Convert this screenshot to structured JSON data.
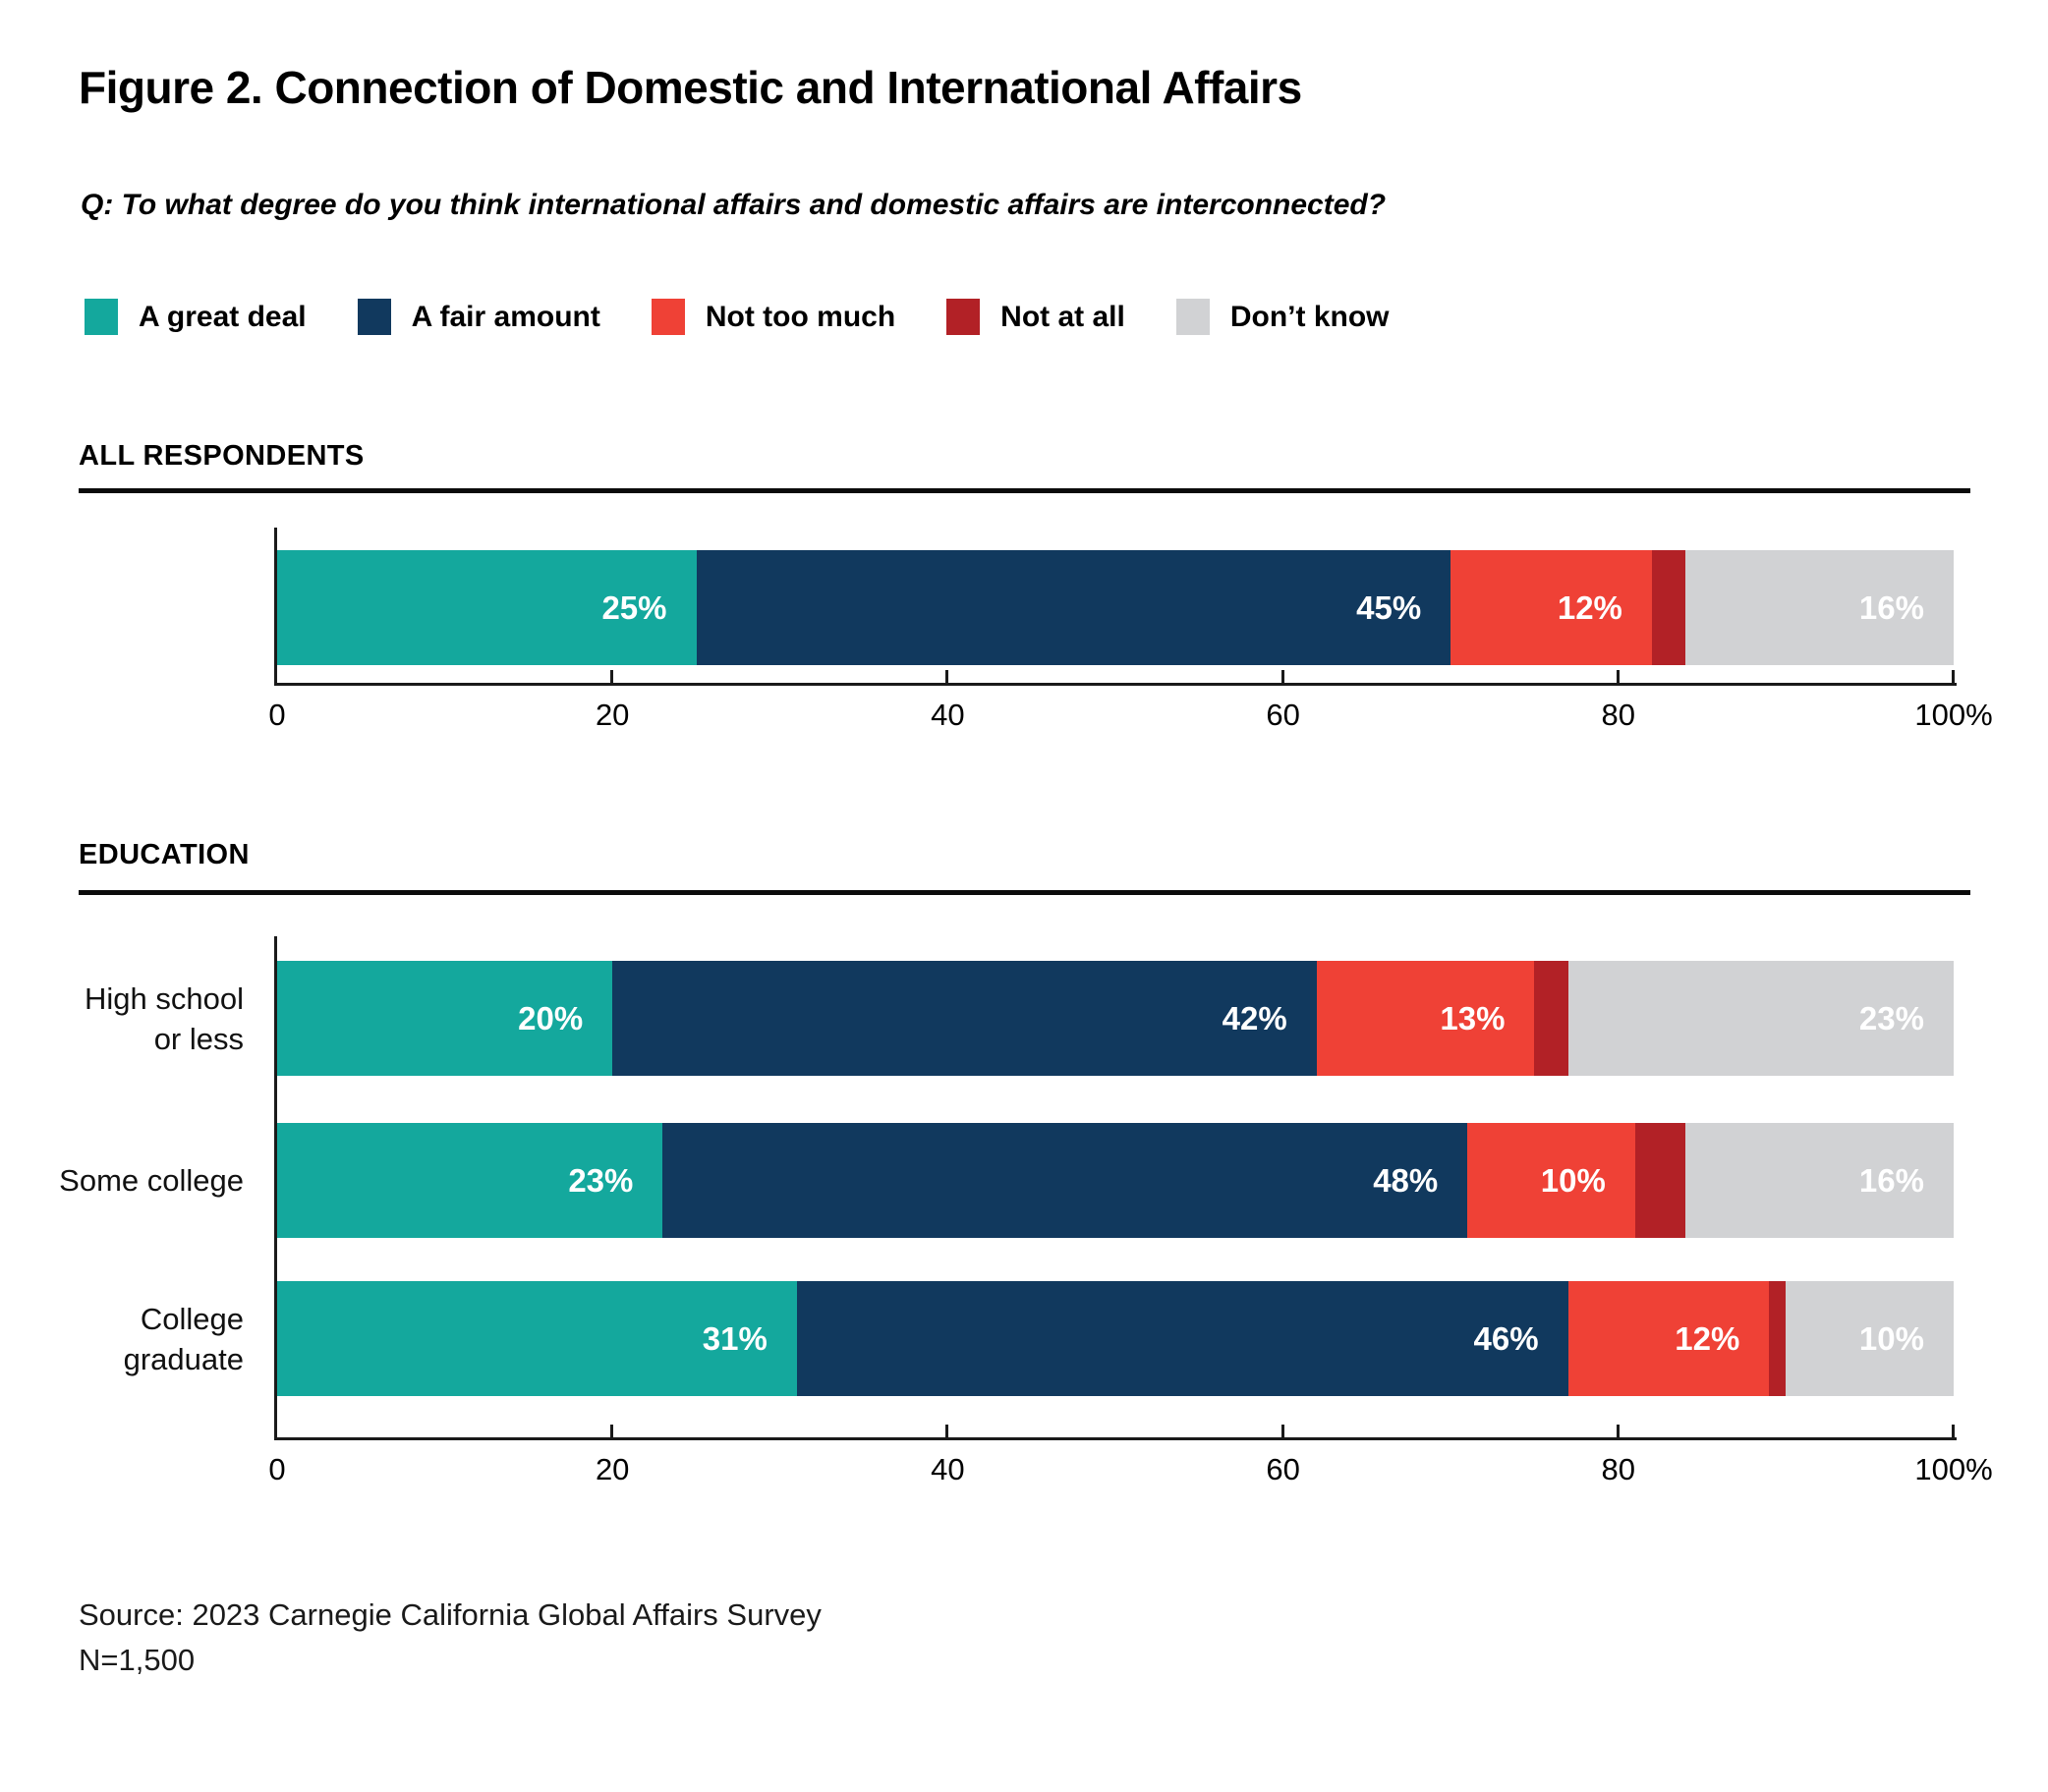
{
  "figure": {
    "title": "Figure 2. Connection of Domestic and International Affairs",
    "question": "Q: To what degree do you think international affairs and domestic affairs are interconnected?",
    "source_line1": "Source: 2023 Carnegie California Global Affairs Survey",
    "source_line2": "N=1,500"
  },
  "legend": {
    "items": [
      {
        "label": "A great deal",
        "color": "#14A89D"
      },
      {
        "label": "A fair amount",
        "color": "#11395E"
      },
      {
        "label": "Not too much",
        "color": "#EF4136"
      },
      {
        "label": "Not at all",
        "color": "#B22126"
      },
      {
        "label": "Don’t know",
        "color": "#D1D2D4"
      }
    ]
  },
  "chart_data": {
    "type": "bar",
    "subtype": "horizontal-stacked-percentage",
    "unit": "%",
    "series": [
      "A great deal",
      "A fair amount",
      "Not too much",
      "Not at all",
      "Don’t know"
    ],
    "colors": [
      "#14A89D",
      "#11395E",
      "#EF4136",
      "#B22126",
      "#D1D2D4"
    ],
    "axis": {
      "min": 0,
      "max": 100,
      "tick_values": [
        0,
        20,
        40,
        60,
        80,
        100
      ],
      "tick_labels": [
        "0",
        "20",
        "40",
        "60",
        "80",
        "100%"
      ],
      "grid": false
    },
    "legend_position": "top",
    "groups": [
      {
        "name": "ALL RESPONDENTS",
        "rows": [
          {
            "label_lines": [],
            "values": [
              25,
              45,
              12,
              2,
              16
            ],
            "data_labels": [
              "25%",
              "45%",
              "12%",
              "",
              "16%"
            ]
          }
        ]
      },
      {
        "name": "EDUCATION",
        "rows": [
          {
            "label_lines": [
              "High school",
              "or less"
            ],
            "values": [
              20,
              42,
              13,
              2,
              23
            ],
            "data_labels": [
              "20%",
              "42%",
              "13%",
              "",
              "23%"
            ]
          },
          {
            "label_lines": [
              "Some college"
            ],
            "values": [
              23,
              48,
              10,
              3,
              16
            ],
            "data_labels": [
              "23%",
              "48%",
              "10%",
              "",
              "16%"
            ]
          },
          {
            "label_lines": [
              "College",
              "graduate"
            ],
            "values": [
              31,
              46,
              12,
              1,
              10
            ],
            "data_labels": [
              "31%",
              "46%",
              "12%",
              "",
              "10%"
            ]
          }
        ]
      }
    ]
  }
}
